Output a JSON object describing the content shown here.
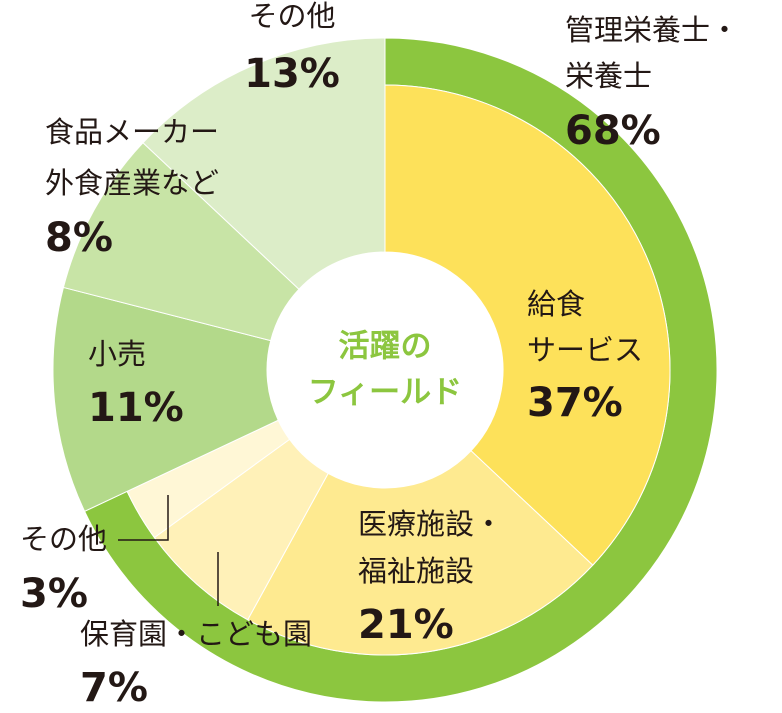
{
  "chart_data": {
    "type": "donut",
    "center_label": [
      "活躍の",
      "フィールド"
    ],
    "center_color": "#8cc63f",
    "outer": {
      "labels": [
        [
          "管理栄養士・",
          "栄養士"
        ]
      ],
      "values": [
        68
      ],
      "value_labels": [
        "68%"
      ],
      "colors": [
        "#8cc63f"
      ]
    },
    "slices": {
      "labels": [
        [
          "給食",
          "サービス"
        ],
        [
          "医療施設・",
          "福祉施設"
        ],
        [
          "保育園・こども園"
        ],
        [
          "その他"
        ],
        [
          "小売"
        ],
        [
          "食品メーカー",
          "外食産業など"
        ],
        [
          "その他"
        ]
      ],
      "values": [
        37,
        21,
        7,
        3,
        11,
        8,
        13
      ],
      "value_labels": [
        "37%",
        "21%",
        "7%",
        "3%",
        "11%",
        "8%",
        "13%"
      ],
      "colors": [
        "#fde15a",
        "#feea90",
        "#fff1b8",
        "#fff7d6",
        "#b3d98a",
        "#c8e4a6",
        "#dcedc8"
      ]
    }
  }
}
